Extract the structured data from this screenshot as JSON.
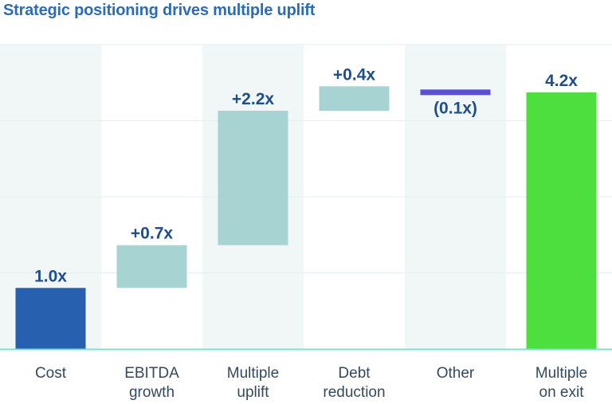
{
  "title": "Strategic positioning drives multiple uplift",
  "colors": {
    "title": "#2b6cb8",
    "start_bar": "#2660ae",
    "increase": "#a8d3d3",
    "decrease": "#5b4fd6",
    "total": "#4cdf3e",
    "baseline": "#7fe0c8",
    "label": "#1f4e8c",
    "band": "#f1f7f7"
  },
  "chart_data": {
    "type": "bar",
    "subtype": "waterfall",
    "title": "Strategic positioning drives multiple uplift",
    "xlabel": "",
    "ylabel": "",
    "ylim": [
      0,
      4.2
    ],
    "grid": true,
    "categories": [
      [
        "Cost"
      ],
      [
        "EBITDA",
        "growth"
      ],
      [
        "Multiple",
        "uplift"
      ],
      [
        "Debt",
        "reduction"
      ],
      [
        "Other"
      ],
      [
        "Multiple",
        "on exit"
      ]
    ],
    "values": [
      1.0,
      0.7,
      2.2,
      0.4,
      -0.1,
      4.2
    ],
    "kinds": [
      "start",
      "delta",
      "delta",
      "delta",
      "delta",
      "total"
    ],
    "labels": [
      "1.0x",
      "+0.7x",
      "+2.2x",
      "+0.4x",
      "(0.1x)",
      "4.2x"
    ]
  }
}
